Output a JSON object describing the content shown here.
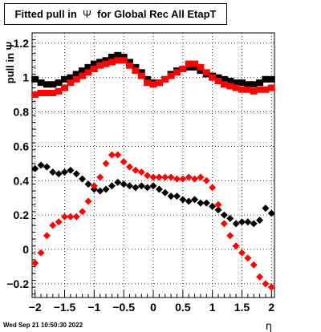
{
  "title": {
    "prefix": "Fitted pull in",
    "symbol": "Ψ",
    "suffix": "for Global Rec All EtapT"
  },
  "footer": {
    "timestamp": "Wed Sep 21 10:50:30 2022"
  },
  "chart_data": {
    "type": "scatter",
    "title": "Fitted pull in Ψ for Global Rec All EtapT",
    "xlabel": "η",
    "ylabel": "pull in Ψ",
    "xlim": [
      -2.05,
      2.05
    ],
    "ylim": [
      -0.28,
      1.26
    ],
    "grid": true,
    "x_ticks": [
      -2,
      -1.5,
      -1,
      -0.5,
      0,
      0.5,
      1,
      1.5,
      2
    ],
    "x_tick_labels": [
      "−2",
      "−1.5",
      "−1",
      "−0.5",
      "0",
      "0.5",
      "1",
      "1.5",
      "2"
    ],
    "y_ticks": [
      -0.2,
      0,
      0.2,
      0.4,
      0.6,
      0.8,
      1,
      1.2
    ],
    "y_tick_labels": [
      "−0.2",
      "0",
      "0.2",
      "0.4",
      "0.6",
      "0.8",
      "1",
      "1.2"
    ],
    "series": [
      {
        "color": "#000000",
        "marker": "square",
        "values": [
          [
            -2.0,
            0.99
          ],
          [
            -1.9,
            0.97
          ],
          [
            -1.8,
            0.96
          ],
          [
            -1.7,
            0.96
          ],
          [
            -1.6,
            0.97
          ],
          [
            -1.5,
            0.99
          ],
          [
            -1.4,
            1.0
          ],
          [
            -1.3,
            1.02
          ],
          [
            -1.2,
            1.04
          ],
          [
            -1.1,
            1.06
          ],
          [
            -1.0,
            1.08
          ],
          [
            -0.9,
            1.09
          ],
          [
            -0.8,
            1.1
          ],
          [
            -0.7,
            1.12
          ],
          [
            -0.6,
            1.13
          ],
          [
            -0.5,
            1.12
          ],
          [
            -0.4,
            1.09
          ],
          [
            -0.3,
            1.06
          ],
          [
            -0.2,
            1.03
          ],
          [
            -0.1,
            0.99
          ],
          [
            0.0,
            0.97
          ],
          [
            0.1,
            0.97
          ],
          [
            0.2,
            0.99
          ],
          [
            0.3,
            1.02
          ],
          [
            0.4,
            1.04
          ],
          [
            0.5,
            1.05
          ],
          [
            0.6,
            1.06
          ],
          [
            0.7,
            1.06
          ],
          [
            0.8,
            1.04
          ],
          [
            0.9,
            1.02
          ],
          [
            1.0,
            1.01
          ],
          [
            1.1,
            1.0
          ],
          [
            1.2,
            0.99
          ],
          [
            1.3,
            0.98
          ],
          [
            1.4,
            0.97
          ],
          [
            1.5,
            0.97
          ],
          [
            1.6,
            0.96
          ],
          [
            1.7,
            0.96
          ],
          [
            1.8,
            0.97
          ],
          [
            1.9,
            0.99
          ],
          [
            2.0,
            0.99
          ]
        ]
      },
      {
        "color": "#ff0000",
        "marker": "square",
        "values": [
          [
            -2.0,
            0.9
          ],
          [
            -1.9,
            0.91
          ],
          [
            -1.8,
            0.91
          ],
          [
            -1.7,
            0.91
          ],
          [
            -1.6,
            0.92
          ],
          [
            -1.5,
            0.94
          ],
          [
            -1.4,
            0.97
          ],
          [
            -1.3,
            0.99
          ],
          [
            -1.2,
            1.01
          ],
          [
            -1.1,
            1.03
          ],
          [
            -1.0,
            1.05
          ],
          [
            -0.9,
            1.07
          ],
          [
            -0.8,
            1.08
          ],
          [
            -0.7,
            1.09
          ],
          [
            -0.6,
            1.1
          ],
          [
            -0.5,
            1.1
          ],
          [
            -0.4,
            1.07
          ],
          [
            -0.3,
            1.04
          ],
          [
            -0.2,
            1.01
          ],
          [
            -0.1,
            0.97
          ],
          [
            0.0,
            0.96
          ],
          [
            0.1,
            0.97
          ],
          [
            0.2,
            0.99
          ],
          [
            0.3,
            1.01
          ],
          [
            0.4,
            1.03
          ],
          [
            0.5,
            1.05
          ],
          [
            0.6,
            1.08
          ],
          [
            0.7,
            1.08
          ],
          [
            0.8,
            1.06
          ],
          [
            0.9,
            1.03
          ],
          [
            1.0,
            1.0
          ],
          [
            1.1,
            0.98
          ],
          [
            1.2,
            0.96
          ],
          [
            1.3,
            0.95
          ],
          [
            1.4,
            0.94
          ],
          [
            1.5,
            0.93
          ],
          [
            1.6,
            0.93
          ],
          [
            1.7,
            0.92
          ],
          [
            1.8,
            0.93
          ],
          [
            1.9,
            0.93
          ],
          [
            2.0,
            0.94
          ]
        ]
      },
      {
        "color": "#000000",
        "marker": "diamond",
        "values": [
          [
            -2.0,
            0.47
          ],
          [
            -1.9,
            0.49
          ],
          [
            -1.8,
            0.48
          ],
          [
            -1.7,
            0.45
          ],
          [
            -1.6,
            0.44
          ],
          [
            -1.5,
            0.45
          ],
          [
            -1.4,
            0.46
          ],
          [
            -1.3,
            0.44
          ],
          [
            -1.2,
            0.41
          ],
          [
            -1.1,
            0.38
          ],
          [
            -1.0,
            0.35
          ],
          [
            -0.9,
            0.34
          ],
          [
            -0.8,
            0.35
          ],
          [
            -0.7,
            0.37
          ],
          [
            -0.6,
            0.39
          ],
          [
            -0.5,
            0.38
          ],
          [
            -0.4,
            0.37
          ],
          [
            -0.3,
            0.36
          ],
          [
            -0.2,
            0.37
          ],
          [
            -0.1,
            0.36
          ],
          [
            0.0,
            0.37
          ],
          [
            0.1,
            0.35
          ],
          [
            0.2,
            0.33
          ],
          [
            0.3,
            0.31
          ],
          [
            0.4,
            0.31
          ],
          [
            0.5,
            0.29
          ],
          [
            0.6,
            0.28
          ],
          [
            0.7,
            0.29
          ],
          [
            0.8,
            0.27
          ],
          [
            0.9,
            0.27
          ],
          [
            1.0,
            0.25
          ],
          [
            1.1,
            0.23
          ],
          [
            1.2,
            0.2
          ],
          [
            1.3,
            0.18
          ],
          [
            1.4,
            0.15
          ],
          [
            1.5,
            0.16
          ],
          [
            1.6,
            0.16
          ],
          [
            1.7,
            0.15
          ],
          [
            1.8,
            0.17
          ],
          [
            1.9,
            0.24
          ],
          [
            2.0,
            0.21
          ]
        ]
      },
      {
        "color": "#ff0000",
        "marker": "diamond",
        "values": [
          [
            -2.0,
            -0.08
          ],
          [
            -1.9,
            -0.02
          ],
          [
            -1.8,
            0.08
          ],
          [
            -1.7,
            0.14
          ],
          [
            -1.6,
            0.16
          ],
          [
            -1.5,
            0.19
          ],
          [
            -1.4,
            0.19
          ],
          [
            -1.3,
            0.19
          ],
          [
            -1.2,
            0.22
          ],
          [
            -1.1,
            0.28
          ],
          [
            -1.0,
            0.37
          ],
          [
            -0.9,
            0.42
          ],
          [
            -0.8,
            0.5
          ],
          [
            -0.7,
            0.55
          ],
          [
            -0.6,
            0.55
          ],
          [
            -0.5,
            0.51
          ],
          [
            -0.4,
            0.48
          ],
          [
            -0.3,
            0.46
          ],
          [
            -0.2,
            0.45
          ],
          [
            -0.1,
            0.43
          ],
          [
            0.0,
            0.42
          ],
          [
            0.1,
            0.42
          ],
          [
            0.2,
            0.42
          ],
          [
            0.3,
            0.42
          ],
          [
            0.4,
            0.41
          ],
          [
            0.5,
            0.41
          ],
          [
            0.6,
            0.42
          ],
          [
            0.7,
            0.41
          ],
          [
            0.8,
            0.42
          ],
          [
            0.9,
            0.4
          ],
          [
            1.0,
            0.36
          ],
          [
            1.1,
            0.26
          ],
          [
            1.2,
            0.15
          ],
          [
            1.3,
            0.08
          ],
          [
            1.4,
            0.02
          ],
          [
            1.5,
            -0.02
          ],
          [
            1.6,
            -0.05
          ],
          [
            1.7,
            -0.09
          ],
          [
            1.8,
            -0.16
          ],
          [
            1.9,
            -0.2
          ],
          [
            2.0,
            -0.22
          ]
        ]
      }
    ]
  }
}
